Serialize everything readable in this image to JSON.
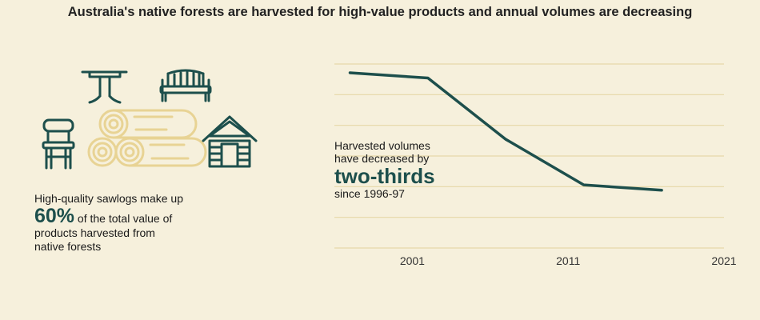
{
  "header": {
    "title": "Australia's native forests are harvested for high-value products and annual volumes are decreasing"
  },
  "icons": [
    "table-icon",
    "bench-icon",
    "chair-icon",
    "logs-icon",
    "house-icon"
  ],
  "left_panel": {
    "line1": "High-quality sawlogs make up",
    "stat": "60%",
    "line2": " of the total value of",
    "line3": "products harvested from",
    "line4": "native forests"
  },
  "callout": {
    "line1": "Harvested volumes",
    "line2": "have decreased by",
    "stat": "two-thirds",
    "line3": "since 1996-97"
  },
  "colors": {
    "background": "#f6f0dc",
    "accent": "#1d4f4c",
    "line": "#1d4f4c",
    "grid": "#e6d8a8",
    "logs": "#e8d394"
  },
  "chart_data": {
    "type": "line",
    "title": "",
    "xlabel": "",
    "ylabel": "",
    "x": [
      1997,
      2002,
      2007,
      2012,
      2017
    ],
    "series": [
      {
        "values": [
          100,
          97,
          62,
          36,
          33
        ]
      }
    ],
    "xticks": [
      "2001",
      "2011",
      "2021"
    ],
    "xlim": [
      1996,
      2021
    ],
    "ylim": [
      0,
      105
    ],
    "grid": true,
    "y_axis_labels_shown": false
  }
}
